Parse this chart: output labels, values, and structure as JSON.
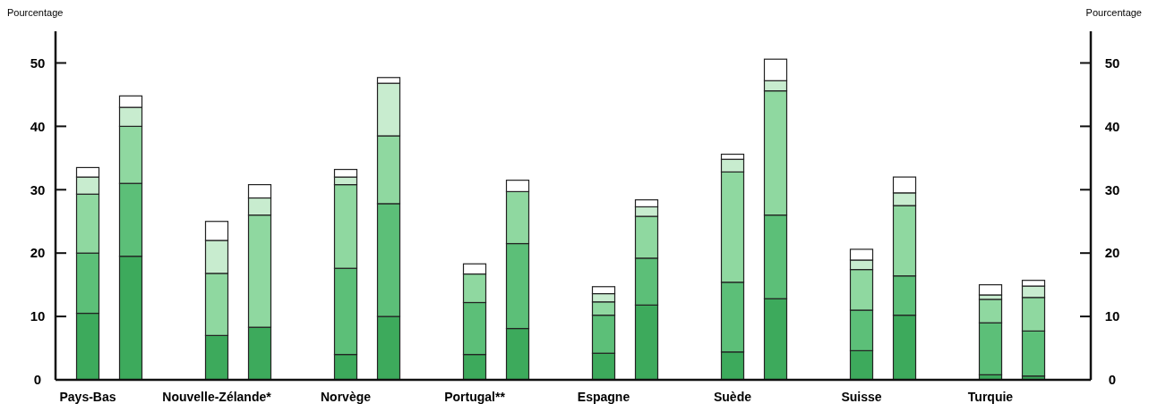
{
  "chart_data": {
    "type": "bar",
    "stacked": true,
    "ylabel": "Pourcentage",
    "y2label": "Pourcentage",
    "categories": [
      "Pays-Bas",
      null,
      "Nouvelle-Zélande*",
      null,
      "Norvège",
      null,
      "Portugal**",
      null,
      "Espagne",
      null,
      "Suède",
      null,
      "Suisse",
      null,
      "Turquie",
      null
    ],
    "series": [
      {
        "color": "#3daa5c",
        "values": [
          10.5,
          19.5,
          7,
          8.3,
          4,
          10,
          4,
          8.1,
          4.2,
          11.8,
          4.4,
          12.8,
          4.6,
          10.2,
          0.8,
          0.6
        ]
      },
      {
        "color": "#5cbf78",
        "values": [
          9.5,
          11.5,
          null,
          null,
          13.6,
          17.8,
          8.2,
          13.4,
          6,
          7.4,
          11,
          13.2,
          6.4,
          6.2,
          8.2,
          7.1
        ]
      },
      {
        "color": "#8fd8a0",
        "values": [
          9.3,
          9,
          9.8,
          17.7,
          13.2,
          10.7,
          4.5,
          8.2,
          2.1,
          6.6,
          17.4,
          19.6,
          6.4,
          11.1,
          3.7,
          5.3
        ]
      },
      {
        "color": "#c8eccf",
        "values": [
          2.7,
          3,
          5.2,
          2.7,
          1.2,
          8.3,
          null,
          null,
          1.3,
          1.5,
          2,
          1.6,
          1.5,
          2,
          0.7,
          1.8
        ]
      },
      {
        "color": "#ffffff",
        "values": [
          1.5,
          1.8,
          3,
          2.1,
          1.2,
          0.9,
          1.6,
          1.8,
          1.1,
          1.1,
          0.8,
          3.4,
          1.7,
          2.5,
          1.6,
          0.9
        ]
      }
    ],
    "ylim": [
      0,
      55
    ],
    "yticks": [
      0,
      10,
      20,
      30,
      40,
      50
    ],
    "y2lim": [
      0,
      55
    ],
    "y2ticks": [
      0,
      10,
      20,
      30,
      40,
      50
    ],
    "grid": false
  }
}
